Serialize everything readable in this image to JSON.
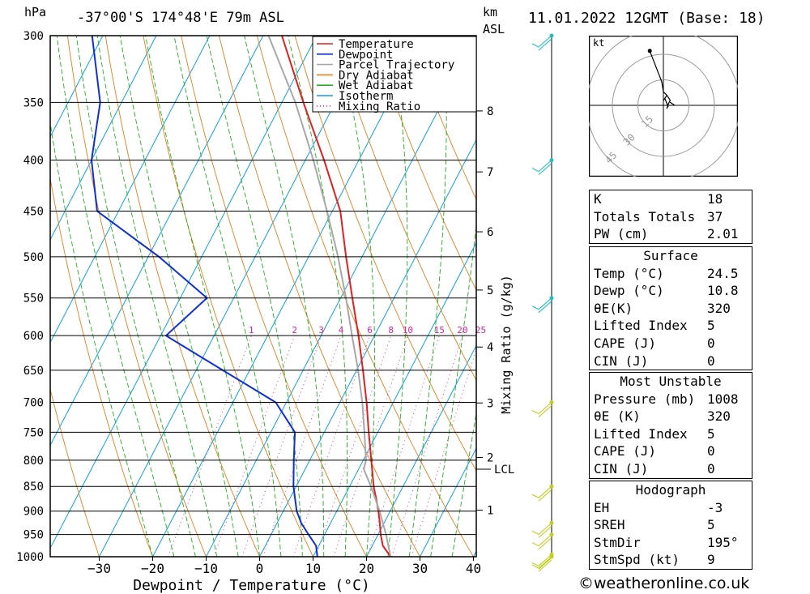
{
  "header": {
    "pressure_unit": "hPa",
    "location": "-37°00'S  174°48'E  79m  ASL",
    "km_label": "km",
    "asl_label": "ASL",
    "datetime": "11.01.2022  12GMT  (Base: 18)"
  },
  "chart_data": {
    "type": "line",
    "subtype": "skew-T log-P",
    "xlabel": "Dewpoint / Temperature (°C)",
    "ylabel": "hPa",
    "y2label": "Mixing Ratio (g/kg)",
    "pressure_levels": [
      300,
      350,
      400,
      450,
      500,
      550,
      600,
      650,
      700,
      750,
      800,
      850,
      900,
      950,
      1000
    ],
    "temperature_ticks": [
      -30,
      -20,
      -10,
      0,
      10,
      20,
      30,
      40
    ],
    "ylim": [
      1000,
      300
    ],
    "xlim": [
      -40,
      40
    ],
    "km_ticks": [
      1,
      2,
      3,
      4,
      5,
      6,
      7,
      8
    ],
    "km_pressures": [
      898,
      795,
      701,
      616,
      540,
      472,
      411,
      357
    ],
    "lcl_label": "LCL",
    "lcl_pressure": 817,
    "mixing_ratio_labels": [
      "1",
      "2",
      "3",
      "4",
      "6",
      "8",
      "10",
      "15",
      "20",
      "25"
    ],
    "legend": [
      "Temperature",
      "Dewpoint",
      "Parcel Trajectory",
      "Dry Adiabat",
      "Wet Adiabat",
      "Isotherm",
      "Mixing Ratio"
    ],
    "legend_position": "top-right",
    "colors": {
      "temperature": "#e02020",
      "dewpoint": "#1030d0",
      "parcel": "#a8a8a8",
      "dry_adiabat": "#e08020",
      "wet_adiabat": "#20b020",
      "isotherm": "#10a0e0",
      "mixing_ratio": "#e020a0",
      "wind": "#c0d020",
      "wind_upper": "#20c0c0"
    },
    "series": [
      {
        "name": "Temperature",
        "p": [
          1000,
          975,
          950,
          925,
          900,
          875,
          850,
          800,
          750,
          700,
          650,
          600,
          550,
          500,
          450,
          400,
          350,
          300
        ],
        "t": [
          24.5,
          22.0,
          20.5,
          19.2,
          17.8,
          16.2,
          14.5,
          11.5,
          8.3,
          5.0,
          1.2,
          -3.0,
          -7.8,
          -13.0,
          -18.5,
          -26.5,
          -36.0,
          -46.5
        ]
      },
      {
        "name": "Dewpoint",
        "p": [
          1000,
          975,
          950,
          925,
          900,
          850,
          800,
          750,
          700,
          650,
          600,
          550,
          500,
          450,
          400,
          350,
          300
        ],
        "t": [
          10.8,
          9.5,
          7.0,
          4.5,
          2.5,
          -0.5,
          -3.0,
          -5.5,
          -12.0,
          -25.0,
          -39.0,
          -35.0,
          -48.0,
          -64.0,
          -70.0,
          -74.0,
          -82.0
        ]
      },
      {
        "name": "Parcel Trajectory",
        "p": [
          1000,
          950,
          900,
          850,
          817,
          800,
          750,
          700,
          650,
          600,
          550,
          500,
          450,
          400,
          350,
          300
        ],
        "t": [
          24.5,
          21.5,
          18.0,
          14.0,
          11.0,
          10.5,
          7.5,
          4.2,
          0.3,
          -4.2,
          -9.0,
          -14.5,
          -21.0,
          -28.5,
          -37.5,
          -49.0
        ]
      }
    ],
    "hodograph": {
      "unit": "kt",
      "ring_labels": [
        "15",
        "30",
        "45"
      ],
      "ring_values": [
        15,
        30,
        45
      ],
      "u": [
        2,
        3,
        4,
        2,
        0,
        -1,
        -8
      ],
      "v": [
        -2,
        1,
        3,
        6,
        8,
        14,
        32
      ]
    },
    "wind_levels": [
      1000,
      995,
      950,
      925,
      850,
      700,
      550,
      400,
      300
    ]
  },
  "indices": [
    {
      "label": "K",
      "value": "18"
    },
    {
      "label": "Totals Totals",
      "value": "37"
    },
    {
      "label": "PW (cm)",
      "value": "2.01"
    }
  ],
  "surface": {
    "title": "Surface",
    "rows": [
      {
        "label": "Temp (°C)",
        "value": "24.5"
      },
      {
        "label": "Dewp (°C)",
        "value": "10.8"
      },
      {
        "label": "θE(K)",
        "value": "320"
      },
      {
        "label": "Lifted Index",
        "value": "5"
      },
      {
        "label": "CAPE (J)",
        "value": "0"
      },
      {
        "label": "CIN (J)",
        "value": "0"
      }
    ]
  },
  "most_unstable": {
    "title": "Most Unstable",
    "rows": [
      {
        "label": "Pressure (mb)",
        "value": "1008"
      },
      {
        "label": "θE (K)",
        "value": "320"
      },
      {
        "label": "Lifted Index",
        "value": "5"
      },
      {
        "label": "CAPE (J)",
        "value": "0"
      },
      {
        "label": "CIN (J)",
        "value": "0"
      }
    ]
  },
  "hodograph_table": {
    "title": "Hodograph",
    "rows": [
      {
        "label": "EH",
        "value": "-3"
      },
      {
        "label": "SREH",
        "value": "5"
      },
      {
        "label": "StmDir",
        "value": "195°"
      },
      {
        "label": "StmSpd (kt)",
        "value": "9"
      }
    ]
  },
  "footer": "©weatheronline.co.uk"
}
